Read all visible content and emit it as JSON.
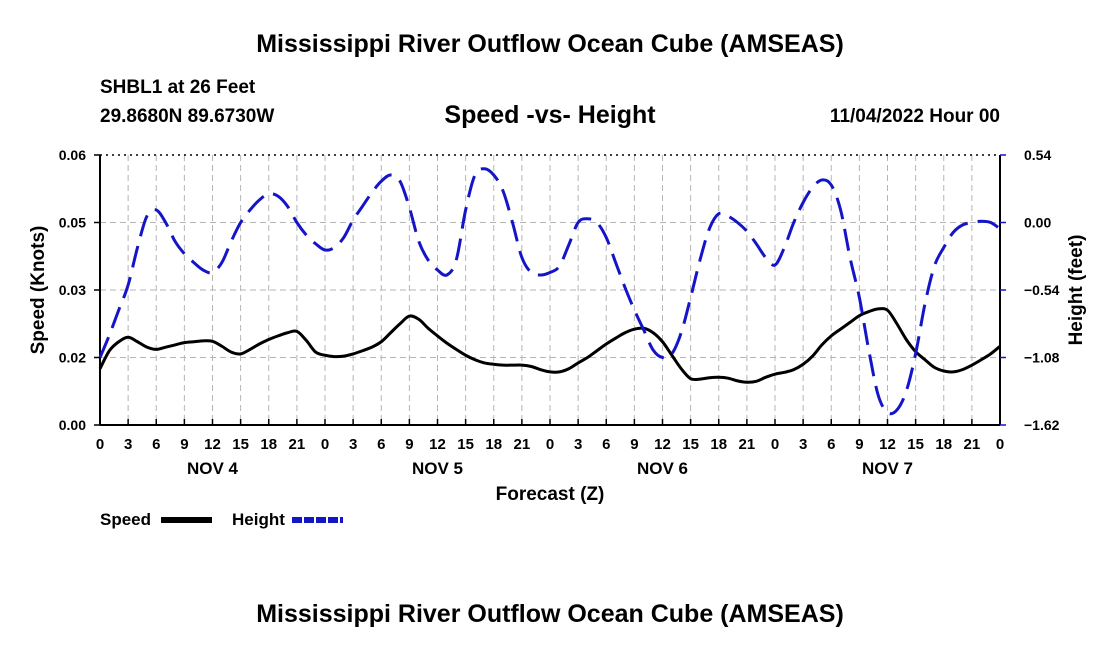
{
  "chart_data": {
    "type": "line",
    "title": "Mississippi River Outflow Ocean Cube (AMSEAS)",
    "footer_title": "Mississippi River Outflow Ocean Cube (AMSEAS)",
    "station": "SHBL1 at 26 Feet",
    "location": "29.8680N  89.6730W",
    "subtitle": "Speed -vs- Height",
    "datetime": "11/04/2022 Hour 00",
    "xlabel": "Forecast (Z)",
    "ylabel_left": "Speed (Knots)",
    "ylabel_right": "Height (feet)",
    "x_range": [
      0,
      96
    ],
    "x_ticks": [
      0,
      3,
      6,
      9,
      12,
      15,
      18,
      21,
      24,
      27,
      30,
      33,
      36,
      39,
      42,
      45,
      48,
      51,
      54,
      57,
      60,
      63,
      66,
      69,
      72,
      75,
      78,
      81,
      84,
      87,
      90,
      93,
      96
    ],
    "x_tick_labels": [
      "0",
      "3",
      "6",
      "9",
      "12",
      "15",
      "18",
      "21",
      "0",
      "3",
      "6",
      "9",
      "12",
      "15",
      "18",
      "21",
      "0",
      "3",
      "6",
      "9",
      "12",
      "15",
      "18",
      "21",
      "0",
      "3",
      "6",
      "9",
      "12",
      "15",
      "18",
      "21",
      "0"
    ],
    "day_labels": [
      {
        "x": 12,
        "label": "NOV 4"
      },
      {
        "x": 36,
        "label": "NOV 5"
      },
      {
        "x": 60,
        "label": "NOV 6"
      },
      {
        "x": 84,
        "label": "NOV 7"
      }
    ],
    "left_axis": {
      "range": [
        0.0,
        0.06
      ],
      "ticks": [
        0.0,
        0.015,
        0.03,
        0.045,
        0.06
      ],
      "tick_labels": [
        "0.00",
        "0.02",
        "0.03",
        "0.05",
        "0.06"
      ]
    },
    "right_axis": {
      "range": [
        -1.62,
        0.54
      ],
      "ticks": [
        -1.62,
        -1.08,
        -0.54,
        0.0,
        0.54
      ],
      "tick_labels": [
        "−1.62",
        "−1.08",
        "−0.54",
        "0.00",
        "0.54"
      ]
    },
    "series": [
      {
        "name": "Speed",
        "axis": "left",
        "color": "#000000",
        "dash": "solid",
        "x": [
          0,
          1,
          2,
          3,
          4,
          5,
          6,
          7,
          8,
          9,
          10,
          11,
          12,
          13,
          14,
          15,
          16,
          17,
          18,
          19,
          20,
          21,
          22,
          23,
          24,
          25,
          26,
          27,
          28,
          29,
          30,
          31,
          32,
          33,
          34,
          35,
          36,
          37,
          38,
          39,
          40,
          41,
          42,
          43,
          44,
          45,
          46,
          47,
          48,
          49,
          50,
          51,
          52,
          53,
          54,
          55,
          56,
          57,
          58,
          59,
          60,
          61,
          62,
          63,
          64,
          65,
          66,
          67,
          68,
          69,
          70,
          71,
          72,
          73,
          74,
          75,
          76,
          77,
          78,
          79,
          80,
          81,
          82,
          83,
          84,
          85,
          86,
          87,
          88,
          89,
          90,
          91,
          92,
          93,
          94,
          95,
          96
        ],
        "values": [
          0.0125,
          0.0165,
          0.0185,
          0.0195,
          0.0185,
          0.0173,
          0.0168,
          0.0173,
          0.0178,
          0.0183,
          0.0185,
          0.0187,
          0.0186,
          0.0175,
          0.0162,
          0.0158,
          0.0168,
          0.018,
          0.019,
          0.0198,
          0.0205,
          0.0208,
          0.0188,
          0.0162,
          0.0155,
          0.0152,
          0.0153,
          0.0158,
          0.0165,
          0.0173,
          0.0185,
          0.0205,
          0.0225,
          0.0242,
          0.0235,
          0.0215,
          0.0198,
          0.0182,
          0.0168,
          0.0155,
          0.0145,
          0.0138,
          0.0135,
          0.0133,
          0.0133,
          0.0133,
          0.013,
          0.0123,
          0.0118,
          0.0118,
          0.0125,
          0.0138,
          0.015,
          0.0165,
          0.018,
          0.0193,
          0.0205,
          0.0213,
          0.0215,
          0.0205,
          0.0185,
          0.0155,
          0.0125,
          0.0103,
          0.0102,
          0.0105,
          0.0106,
          0.0104,
          0.0098,
          0.0095,
          0.0097,
          0.0106,
          0.0113,
          0.0117,
          0.0123,
          0.0135,
          0.0153,
          0.0178,
          0.0198,
          0.0213,
          0.0228,
          0.0243,
          0.0252,
          0.0258,
          0.0255,
          0.0225,
          0.019,
          0.0163,
          0.0145,
          0.0128,
          0.012,
          0.0118,
          0.0123,
          0.0133,
          0.0145,
          0.0158,
          0.0175
        ]
      },
      {
        "name": "Height",
        "axis": "right",
        "color": "#1515c8",
        "dash": "dashed",
        "x": [
          0,
          1,
          2,
          3,
          4,
          5,
          6,
          7,
          8,
          9,
          10,
          11,
          12,
          13,
          14,
          15,
          16,
          17,
          18,
          19,
          20,
          21,
          22,
          23,
          24,
          25,
          26,
          27,
          28,
          29,
          30,
          31,
          32,
          33,
          34,
          35,
          36,
          37,
          38,
          39,
          40,
          41,
          42,
          43,
          44,
          45,
          46,
          47,
          48,
          49,
          50,
          51,
          52,
          53,
          54,
          55,
          56,
          57,
          58,
          59,
          60,
          61,
          62,
          63,
          64,
          65,
          66,
          67,
          68,
          69,
          70,
          71,
          72,
          73,
          74,
          75,
          76,
          77,
          78,
          79,
          80,
          81,
          82,
          83,
          84,
          85,
          86,
          87,
          88,
          89,
          90,
          91,
          92,
          93,
          94,
          95,
          96
        ],
        "values": [
          -1.08,
          -0.9,
          -0.7,
          -0.5,
          -0.2,
          0.05,
          0.1,
          0.0,
          -0.15,
          -0.25,
          -0.32,
          -0.38,
          -0.4,
          -0.32,
          -0.15,
          0.0,
          0.1,
          0.18,
          0.23,
          0.21,
          0.13,
          0.0,
          -0.1,
          -0.17,
          -0.22,
          -0.2,
          -0.12,
          0.02,
          0.13,
          0.24,
          0.33,
          0.38,
          0.33,
          0.12,
          -0.15,
          -0.3,
          -0.38,
          -0.42,
          -0.3,
          0.1,
          0.38,
          0.43,
          0.38,
          0.25,
          0.0,
          -0.28,
          -0.4,
          -0.42,
          -0.4,
          -0.35,
          -0.18,
          0.0,
          0.03,
          0.0,
          -0.12,
          -0.32,
          -0.52,
          -0.7,
          -0.86,
          -1.02,
          -1.08,
          -1.05,
          -0.88,
          -0.6,
          -0.3,
          -0.05,
          0.07,
          0.05,
          0.0,
          -0.07,
          -0.17,
          -0.28,
          -0.34,
          -0.2,
          0.0,
          0.16,
          0.28,
          0.34,
          0.3,
          0.1,
          -0.28,
          -0.6,
          -1.02,
          -1.38,
          -1.52,
          -1.5,
          -1.35,
          -1.05,
          -0.65,
          -0.35,
          -0.2,
          -0.08,
          -0.02,
          0.0,
          0.01,
          0.0,
          -0.05
        ]
      }
    ],
    "legend": [
      {
        "label": "Speed",
        "color": "#000000",
        "dash": "solid"
      },
      {
        "label": "Height",
        "color": "#1515c8",
        "dash": "dashed"
      }
    ],
    "grid": true
  }
}
